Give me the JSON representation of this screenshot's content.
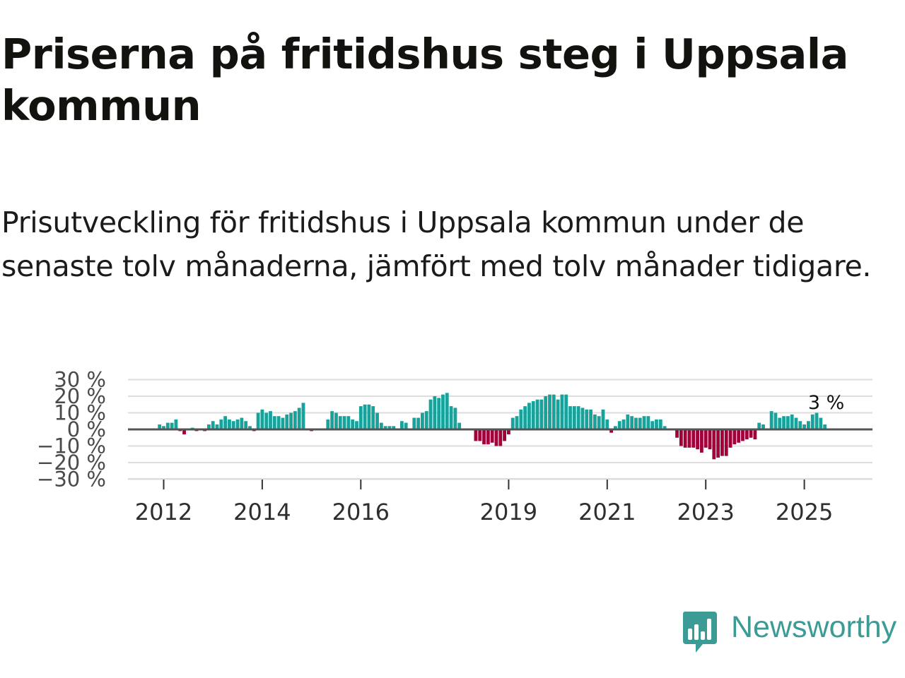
{
  "title": "Priserna på fritidshus steg i Uppsala kommun",
  "subtitle": "Prisutveckling för fritidshus i Uppsala kommun under de senaste tolv månaderna, jämfört med tolv månader tidigare.",
  "brand": {
    "name": "Newsworthy",
    "icon": "newsworthy-logo-icon"
  },
  "colors": {
    "positive": "#17a39c",
    "negative": "#a2003b",
    "grid": "#dddddd",
    "zero_line": "#555555",
    "brand": "#3c9c95"
  },
  "chart_data": {
    "type": "bar",
    "title": "",
    "xlabel": "",
    "ylabel": "",
    "ylim": [
      -30,
      30
    ],
    "y_unit": "%",
    "grid": true,
    "y_ticks": [
      {
        "value": 30,
        "label": "30 %"
      },
      {
        "value": 20,
        "label": "20 %"
      },
      {
        "value": 10,
        "label": "10 %"
      },
      {
        "value": 0,
        "label": "0 %"
      },
      {
        "value": -10,
        "label": "−10 %"
      },
      {
        "value": -20,
        "label": "−20 %"
      },
      {
        "value": -30,
        "label": "−30 %"
      }
    ],
    "x_ticks": [
      "2012",
      "2014",
      "2016",
      "2019",
      "2021",
      "2023",
      "2025"
    ],
    "start": "2011-11",
    "frequency": "monthly",
    "values": [
      0,
      3,
      2,
      4,
      4,
      6,
      -1,
      -3,
      0,
      1,
      -1,
      0,
      -1,
      3,
      5,
      3,
      6,
      8,
      6,
      5,
      6,
      7,
      5,
      2,
      -1,
      10,
      12,
      10,
      11,
      8,
      8,
      7,
      9,
      10,
      11,
      13,
      16,
      0,
      -1,
      0,
      0,
      0,
      6,
      11,
      10,
      8,
      8,
      8,
      6,
      5,
      14,
      15,
      15,
      14,
      10,
      4,
      2,
      2,
      2,
      0,
      5,
      4,
      0,
      7,
      7,
      10,
      11,
      18,
      20,
      19,
      21,
      22,
      14,
      13,
      4,
      0,
      0,
      0,
      -7,
      -7,
      -9,
      -9,
      -8,
      -10,
      -10,
      -7,
      -3,
      7,
      8,
      12,
      14,
      16,
      17,
      18,
      18,
      20,
      21,
      21,
      18,
      21,
      21,
      14,
      14,
      14,
      13,
      12,
      12,
      9,
      8,
      12,
      6,
      -2,
      2,
      5,
      6,
      9,
      8,
      7,
      7,
      8,
      8,
      5,
      6,
      6,
      2,
      0,
      0,
      -5,
      -10,
      -11,
      -11,
      -11,
      -12,
      -14,
      -11,
      -12,
      -18,
      -17,
      -16,
      -16,
      -11,
      -9,
      -8,
      -7,
      -6,
      -5,
      -6,
      4,
      3,
      0,
      11,
      10,
      7,
      8,
      8,
      9,
      7,
      5,
      3,
      5,
      9,
      10,
      7,
      3
    ],
    "last_label": "3 %"
  }
}
